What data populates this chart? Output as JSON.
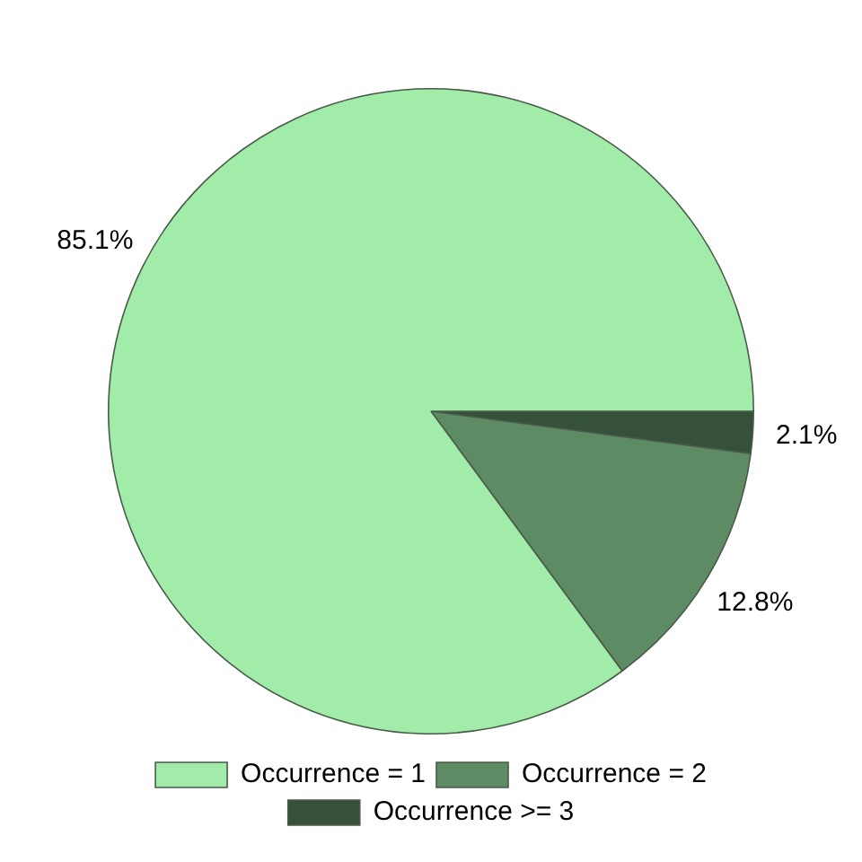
{
  "chart_data": {
    "type": "pie",
    "categories": [
      "Occurrence = 1",
      "Occurrence = 2",
      "Occurrence >= 3"
    ],
    "values": [
      85.1,
      12.8,
      2.1
    ],
    "colors": [
      "#a0eca8",
      "#5d8b63",
      "#36513a"
    ],
    "value_labels": [
      "85.1%",
      "12.8%",
      "2.1%"
    ],
    "legend": "bottom"
  }
}
